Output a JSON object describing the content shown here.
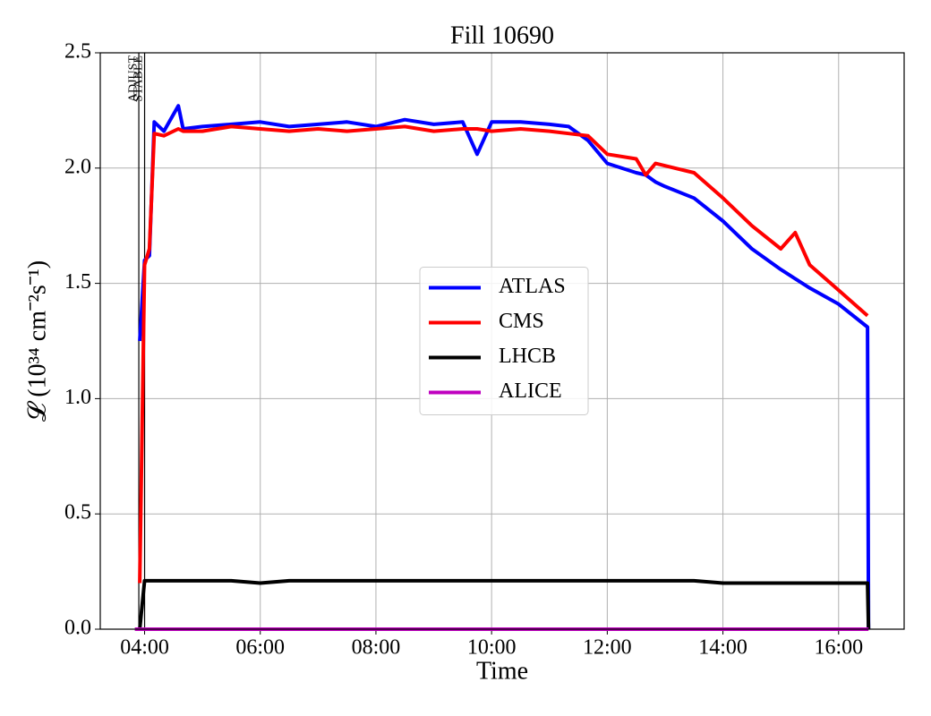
{
  "chart_data": {
    "type": "line",
    "title": "Fill 10690",
    "xlabel": "Time",
    "ylabel": "𝓛 (10³⁴ cm⁻²s⁻¹)",
    "x": [
      "03:50",
      "03:55",
      "04:00",
      "04:05",
      "04:10",
      "04:20",
      "04:35",
      "04:40",
      "05:00",
      "05:30",
      "06:00",
      "06:30",
      "07:00",
      "07:30",
      "08:00",
      "08:30",
      "09:00",
      "09:30",
      "09:45",
      "10:00",
      "10:30",
      "11:00",
      "11:20",
      "11:40",
      "12:00",
      "12:30",
      "12:40",
      "12:50",
      "13:00",
      "13:30",
      "14:00",
      "14:30",
      "15:00",
      "15:15",
      "15:30",
      "16:00",
      "16:30",
      "16:31"
    ],
    "series": [
      {
        "name": "ATLAS",
        "color": "#0000ff",
        "values": [
          null,
          1.25,
          1.6,
          1.62,
          2.2,
          2.16,
          2.27,
          2.17,
          2.18,
          2.19,
          2.2,
          2.18,
          2.19,
          2.2,
          2.18,
          2.21,
          2.19,
          2.2,
          2.06,
          2.2,
          2.2,
          2.19,
          2.18,
          2.12,
          2.02,
          1.98,
          1.97,
          1.94,
          1.92,
          1.87,
          1.77,
          1.65,
          1.56,
          1.52,
          1.48,
          1.41,
          1.31,
          0
        ]
      },
      {
        "name": "CMS",
        "color": "#ff0000",
        "values": [
          null,
          0.2,
          1.58,
          1.65,
          2.15,
          2.14,
          2.17,
          2.16,
          2.16,
          2.18,
          2.17,
          2.16,
          2.17,
          2.16,
          2.17,
          2.18,
          2.16,
          2.17,
          2.17,
          2.16,
          2.17,
          2.16,
          2.15,
          2.14,
          2.06,
          2.04,
          1.97,
          2.02,
          2.01,
          1.98,
          1.87,
          1.75,
          1.65,
          1.72,
          1.58,
          1.47,
          1.36,
          null
        ]
      },
      {
        "name": "LHCB",
        "color": "#000000",
        "values": [
          0,
          0,
          0.21,
          0.21,
          0.21,
          0.21,
          0.21,
          0.21,
          0.21,
          0.21,
          0.2,
          0.21,
          0.21,
          0.21,
          0.21,
          0.21,
          0.21,
          0.21,
          0.21,
          0.21,
          0.21,
          0.21,
          0.21,
          0.21,
          0.21,
          0.21,
          0.21,
          0.21,
          0.21,
          0.21,
          0.2,
          0.2,
          0.2,
          0.2,
          0.2,
          0.2,
          0.2,
          0
        ]
      },
      {
        "name": "ALICE",
        "color": "#bf00bf",
        "values": [
          0,
          0,
          0,
          0,
          0,
          0,
          0,
          0,
          0,
          0,
          0,
          0,
          0,
          0,
          0,
          0,
          0,
          0,
          0,
          0,
          0,
          0,
          0,
          0,
          0,
          0,
          0,
          0,
          0,
          0,
          0,
          0,
          0,
          0,
          0,
          0,
          0,
          0
        ]
      }
    ],
    "xlim": [
      "03:14",
      "17:08"
    ],
    "xticks": [
      "04:00",
      "06:00",
      "08:00",
      "10:00",
      "12:00",
      "14:00",
      "16:00"
    ],
    "ylim": [
      0,
      2.5
    ],
    "yticks": [
      {
        "value": 0,
        "label": "0.0"
      },
      0.5,
      {
        "value": 1,
        "label": "1.0"
      },
      1.5,
      {
        "value": 2,
        "label": "2.0"
      },
      2.5
    ],
    "grid": true,
    "legend": "center",
    "annotations": [
      {
        "x": "03:54",
        "text": "ADJUST"
      },
      {
        "x": "04:00",
        "text": "STABLE"
      }
    ]
  }
}
